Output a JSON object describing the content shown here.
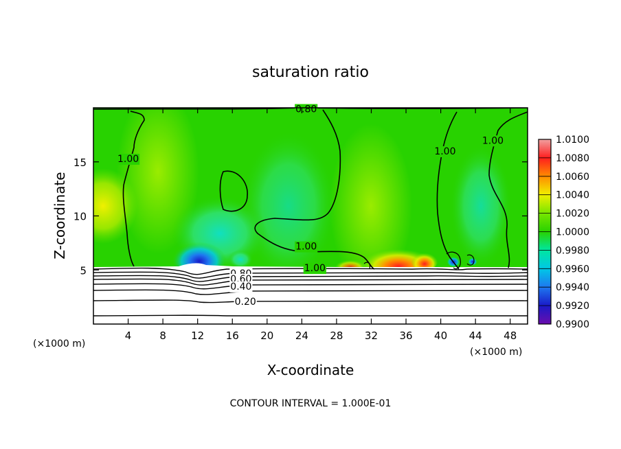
{
  "chart_data": {
    "type": "heatmap",
    "title": "saturation ratio",
    "xlabel": "X-coordinate",
    "ylabel": "Z-coordinate",
    "x_unit_left": "(×1000 m)",
    "x_unit_right": "(×1000 m)",
    "footer": "CONTOUR INTERVAL = 1.000E-01",
    "xlim": [
      0,
      50
    ],
    "ylim": [
      0,
      20
    ],
    "x_ticks": [
      4,
      8,
      12,
      16,
      20,
      24,
      28,
      32,
      36,
      40,
      44,
      48
    ],
    "y_ticks": [
      5,
      10,
      15
    ],
    "colorbar": {
      "levels": [
        "0.9900",
        "0.9920",
        "0.9940",
        "0.9960",
        "0.9980",
        "1.0000",
        "1.0020",
        "1.0040",
        "1.0060",
        "1.0080",
        "1.0100"
      ],
      "colors": [
        "#6a0dad",
        "#1a1ac8",
        "#1e78f0",
        "#00c8e6",
        "#00e6a0",
        "#28d200",
        "#78e600",
        "#f0f000",
        "#ff8c00",
        "#ff1e1e",
        "#f0a0a0"
      ]
    },
    "contour_labels": [
      {
        "text": "0.80",
        "x": 24.5,
        "y": 19.9
      },
      {
        "text": "1.00",
        "x": 4.0,
        "y": 15.3
      },
      {
        "text": "1.00",
        "x": 40.5,
        "y": 16.0
      },
      {
        "text": "1.00",
        "x": 46.0,
        "y": 17.0
      },
      {
        "text": "1.00",
        "x": 24.5,
        "y": 7.2
      },
      {
        "text": "1.00",
        "x": 25.5,
        "y": 5.2
      },
      {
        "text": "0.80",
        "x": 17.0,
        "y": 4.7
      },
      {
        "text": "0.60",
        "x": 17.0,
        "y": 4.2
      },
      {
        "text": "0.40",
        "x": 17.0,
        "y": 3.5
      },
      {
        "text": "0.20",
        "x": 17.5,
        "y": 2.1
      }
    ],
    "boundary_layer_top": 5.3,
    "low_contour_levels": [
      0.8,
      0.7,
      0.6,
      0.5,
      0.4,
      0.3,
      0.2,
      0.1
    ]
  }
}
